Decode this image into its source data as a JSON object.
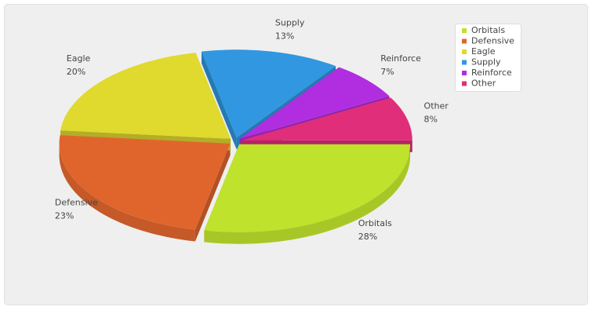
{
  "chart_data": {
    "type": "pie3d",
    "categories": [
      "Orbitals",
      "Defensive",
      "Eagle",
      "Supply",
      "Reinforce",
      "Other"
    ],
    "values": [
      28,
      23,
      20,
      13,
      7,
      8
    ],
    "value_labels": [
      "28%",
      "23%",
      "20%",
      "13%",
      "7%",
      "8%"
    ],
    "colors": [
      "#bfe22c",
      "#e0652d",
      "#e0d92e",
      "#3097e0",
      "#b02ee0",
      "#e02e7a"
    ],
    "legend": "top-right"
  }
}
